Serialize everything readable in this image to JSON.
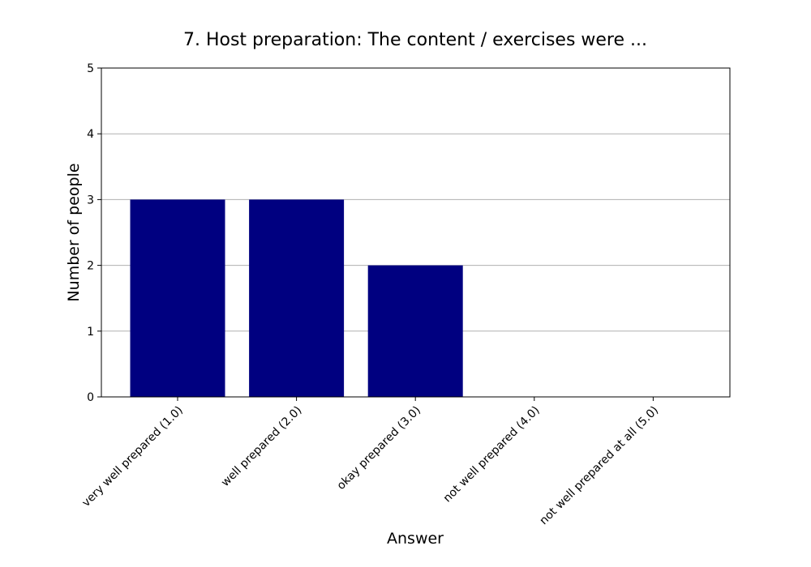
{
  "chart_data": {
    "type": "bar",
    "title": "7. Host preparation: The content / exercises were ...",
    "xlabel": "Answer",
    "ylabel": "Number of people",
    "categories": [
      "very well prepared (1.0)",
      "well prepared (2.0)",
      "okay prepared (3.0)",
      "not well prepared (4.0)",
      "not well prepared at all (5.0)"
    ],
    "values": [
      3,
      3,
      2,
      0,
      0
    ],
    "ylim": [
      0,
      5
    ],
    "yticks": [
      "0",
      "1",
      "2",
      "3",
      "4",
      "5"
    ],
    "grid": "y",
    "legend": "none",
    "colors": {
      "bar": "#000080",
      "grid": "#b0b0b0",
      "axis": "#000000",
      "background": "#ffffff"
    }
  }
}
